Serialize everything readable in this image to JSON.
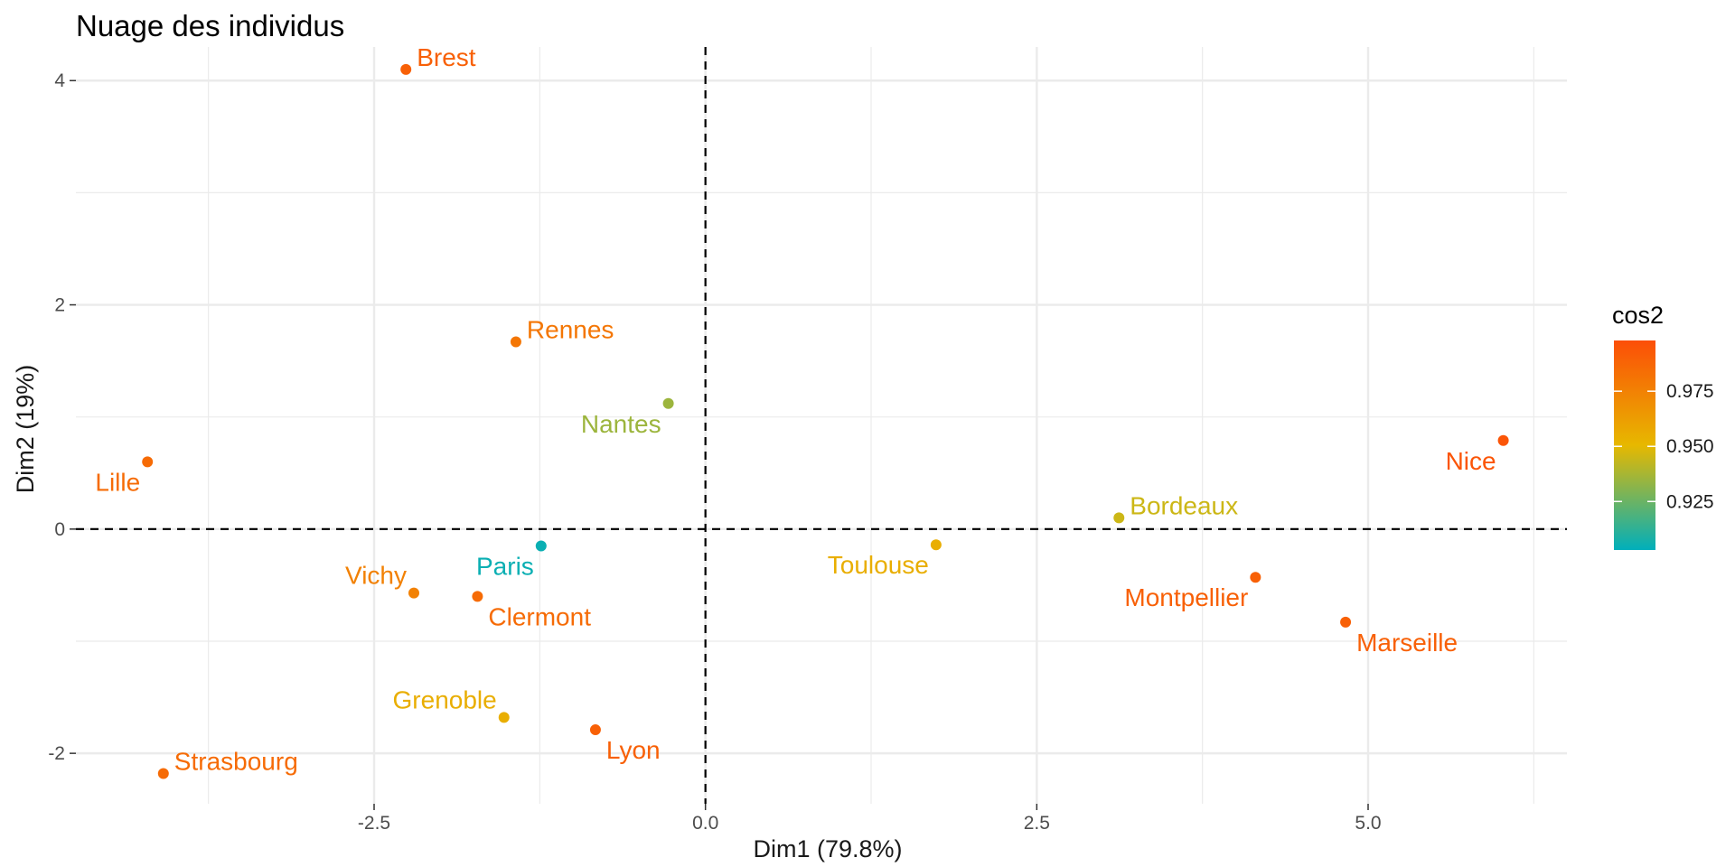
{
  "chart_data": {
    "type": "scatter",
    "title": "Nuage des individus",
    "xlabel": "Dim1 (79.8%)",
    "ylabel": "Dim2 (19%)",
    "xlim": [
      -4.75,
      6.5
    ],
    "ylim": [
      -2.45,
      4.3
    ],
    "x_ticks": [
      -2.5,
      0.0,
      2.5,
      5.0
    ],
    "x_tick_labels": [
      "-2.5",
      "0.0",
      "2.5",
      "5.0"
    ],
    "y_ticks": [
      -2,
      0,
      2,
      4
    ],
    "y_tick_labels": [
      "-2",
      "0",
      "2",
      "4"
    ],
    "reference_lines": {
      "x": 0,
      "y": 0,
      "style": "dashed"
    },
    "grid": true,
    "points": [
      {
        "label": "Brest",
        "x": -2.26,
        "y": 4.1,
        "cos2": 0.99,
        "label_pos": "top-right"
      },
      {
        "label": "Rennes",
        "x": -1.43,
        "y": 1.67,
        "cos2": 0.98,
        "label_pos": "top-right"
      },
      {
        "label": "Nantes",
        "x": -0.28,
        "y": 1.12,
        "cos2": 0.935,
        "label_pos": "bottom-left"
      },
      {
        "label": "Lille",
        "x": -4.21,
        "y": 0.6,
        "cos2": 0.985,
        "label_pos": "bottom-left"
      },
      {
        "label": "Paris",
        "x": -1.24,
        "y": -0.15,
        "cos2": 0.905,
        "label_pos": "bottom-left"
      },
      {
        "label": "Vichy",
        "x": -2.2,
        "y": -0.57,
        "cos2": 0.975,
        "label_pos": "top-left"
      },
      {
        "label": "Clermont",
        "x": -1.72,
        "y": -0.6,
        "cos2": 0.985,
        "label_pos": "bottom-right"
      },
      {
        "label": "Grenoble",
        "x": -1.52,
        "y": -1.68,
        "cos2": 0.955,
        "label_pos": "top-left"
      },
      {
        "label": "Lyon",
        "x": -0.83,
        "y": -1.79,
        "cos2": 0.99,
        "label_pos": "bottom-right"
      },
      {
        "label": "Strasbourg",
        "x": -4.09,
        "y": -2.18,
        "cos2": 0.985,
        "label_pos": "top-right"
      },
      {
        "label": "Toulouse",
        "x": 1.74,
        "y": -0.14,
        "cos2": 0.955,
        "label_pos": "bottom-left"
      },
      {
        "label": "Bordeaux",
        "x": 3.12,
        "y": 0.1,
        "cos2": 0.945,
        "label_pos": "top-right"
      },
      {
        "label": "Montpellier",
        "x": 4.15,
        "y": -0.43,
        "cos2": 0.99,
        "label_pos": "bottom-left"
      },
      {
        "label": "Marseille",
        "x": 4.83,
        "y": -0.83,
        "cos2": 0.99,
        "label_pos": "bottom-right"
      },
      {
        "label": "Nice",
        "x": 6.02,
        "y": 0.79,
        "cos2": 0.995,
        "label_pos": "bottom-left"
      }
    ],
    "legend": {
      "title": "cos2",
      "placement": "right",
      "range": [
        0.903,
        0.998
      ],
      "ticks": [
        0.925,
        0.95,
        0.975
      ],
      "tick_labels": [
        "0.925",
        "0.950",
        "0.975"
      ],
      "colors": [
        "#00AFBB",
        "#E7B800",
        "#FC4E07"
      ]
    }
  }
}
